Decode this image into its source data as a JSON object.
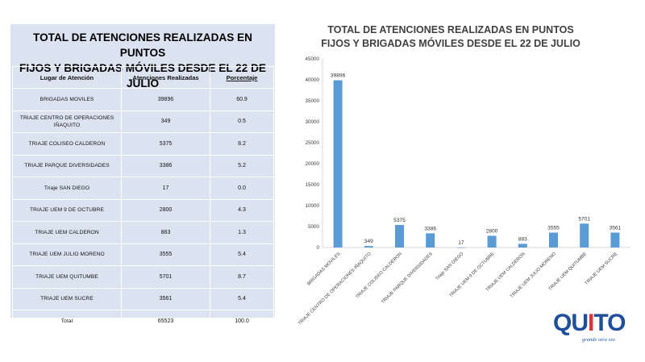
{
  "table": {
    "title_line1": "TOTAL DE ATENCIONES REALIZADAS EN PUNTOS",
    "title_line2": "FIJOS Y BRIGADAS MÓVILES DESDE EL 22 DE JULIO",
    "headers": [
      "Lugar de Atención",
      "Atenciones Realizadas",
      "Porcentaje"
    ],
    "rows": [
      {
        "place": "BRIGADAS MOVILES",
        "count": "39896",
        "pct": "60.9"
      },
      {
        "place": "TRIAJE CENTRO DE OPERACIONES IÑAQUITO",
        "count": "349",
        "pct": "0.5"
      },
      {
        "place": "TRIAJE COLISEO CALDERON",
        "count": "5375",
        "pct": "8.2"
      },
      {
        "place": "TRIAJE PARQUE DIVERSIDADES",
        "count": "3386",
        "pct": "5.2"
      },
      {
        "place": "Triaje SAN DIEGO",
        "count": "17",
        "pct": "0.0"
      },
      {
        "place": "TRIAJE UEM 9 DE OCTUBRE",
        "count": "2800",
        "pct": "4.3"
      },
      {
        "place": "TRIAJE UEM CALDERON",
        "count": "883",
        "pct": "1.3"
      },
      {
        "place": "TRIAJE UEM JULIO MORENO",
        "count": "3555",
        "pct": "5.4"
      },
      {
        "place": "TRIAJE UEM QUITUMBE",
        "count": "5701",
        "pct": "8.7"
      },
      {
        "place": "TRIAJE UEM SUCRE",
        "count": "3561",
        "pct": "5.4"
      },
      {
        "place": "Total",
        "count": "65523",
        "pct": "100.0"
      }
    ]
  },
  "chart_data": {
    "type": "bar",
    "title_line1": "TOTAL DE ATENCIONES REALIZADAS EN PUNTOS",
    "title_line2": "FIJOS Y BRIGADAS MÓVILES DESDE EL 22 DE JULIO",
    "categories": [
      "BRIGADAS MOVILES",
      "TRIAJE CENTRO DE OPERACIONES IÑAQUITO",
      "TRIAJE COLISEO CALDERON",
      "TRIAJE PARQUE DIVERSIDADES",
      "Triaje SAN DIEGO",
      "TRIAJE UEM 9 DE OCTUBRE",
      "TRIAJE UEM CALDERON",
      "TRIAJE UEM JULIO MORENO",
      "TRIAJE UEM QUITUMBE",
      "TRIAJE UEM SUCRE"
    ],
    "values": [
      39896,
      349,
      5375,
      3386,
      17,
      2800,
      883,
      3555,
      5701,
      3561
    ],
    "data_labels": [
      "39896",
      "349",
      "5375",
      "3386",
      "17",
      "2800",
      "883",
      "3555",
      "5701",
      "3561"
    ],
    "yticks": [
      "0",
      "5000",
      "10000",
      "15000",
      "20000",
      "25000",
      "30000",
      "35000",
      "40000",
      "45000"
    ],
    "ylim": [
      0,
      45000
    ],
    "grid": false,
    "bar_color": "#5b9bd5"
  },
  "logo": {
    "word_start": "QU",
    "word_mid": "I",
    "word_end": "TO",
    "tagline": "grande otra vez"
  }
}
